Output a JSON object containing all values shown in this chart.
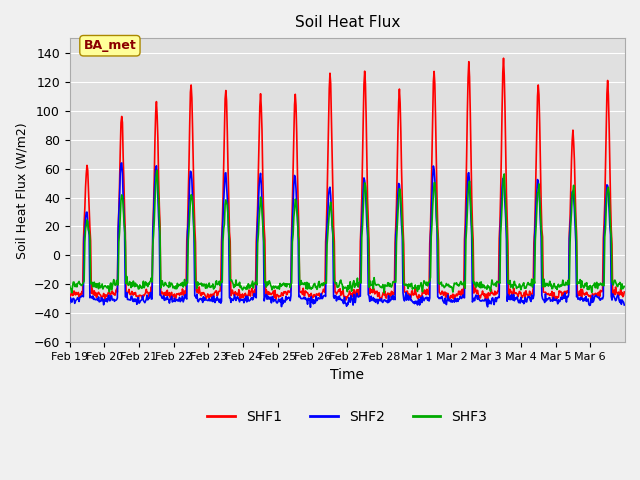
{
  "title": "Soil Heat Flux",
  "xlabel": "Time",
  "ylabel": "Soil Heat Flux (W/m2)",
  "ylim": [
    -60,
    150
  ],
  "yticks": [
    -60,
    -40,
    -20,
    0,
    20,
    40,
    60,
    80,
    100,
    120,
    140
  ],
  "x_tick_labels": [
    "Feb 19",
    "Feb 20",
    "Feb 21",
    "Feb 22",
    "Feb 23",
    "Feb 24",
    "Feb 25",
    "Feb 26",
    "Feb 27",
    "Feb 28",
    "Mar 1",
    "Mar 2",
    "Mar 3",
    "Mar 4",
    "Mar 5",
    "Mar 6"
  ],
  "colors": {
    "SHF1": "#ff0000",
    "SHF2": "#0000ff",
    "SHF3": "#00aa00"
  },
  "line_width": 1.2,
  "plot_bg_color": "#e0e0e0",
  "fig_bg_color": "#f0f0f0",
  "annotation_text": "BA_met",
  "annotation_color": "#8b0000",
  "annotation_bg": "#ffff99",
  "annotation_edge": "#aa8800",
  "num_days": 16,
  "n_points_per_day": 48,
  "shf1_peaks": [
    63,
    96,
    105,
    118,
    115,
    112,
    110,
    125,
    127,
    115,
    128,
    132,
    135,
    118,
    86,
    120
  ],
  "shf2_peaks": [
    30,
    65,
    62,
    60,
    58,
    57,
    55,
    48,
    55,
    50,
    62,
    58,
    55,
    52,
    46,
    50
  ],
  "shf3_peaks": [
    25,
    42,
    58,
    42,
    40,
    38,
    38,
    35,
    50,
    45,
    52,
    50,
    55,
    48,
    48,
    49
  ],
  "shf1_night": -28,
  "shf2_night": -32,
  "shf3_night": -22
}
